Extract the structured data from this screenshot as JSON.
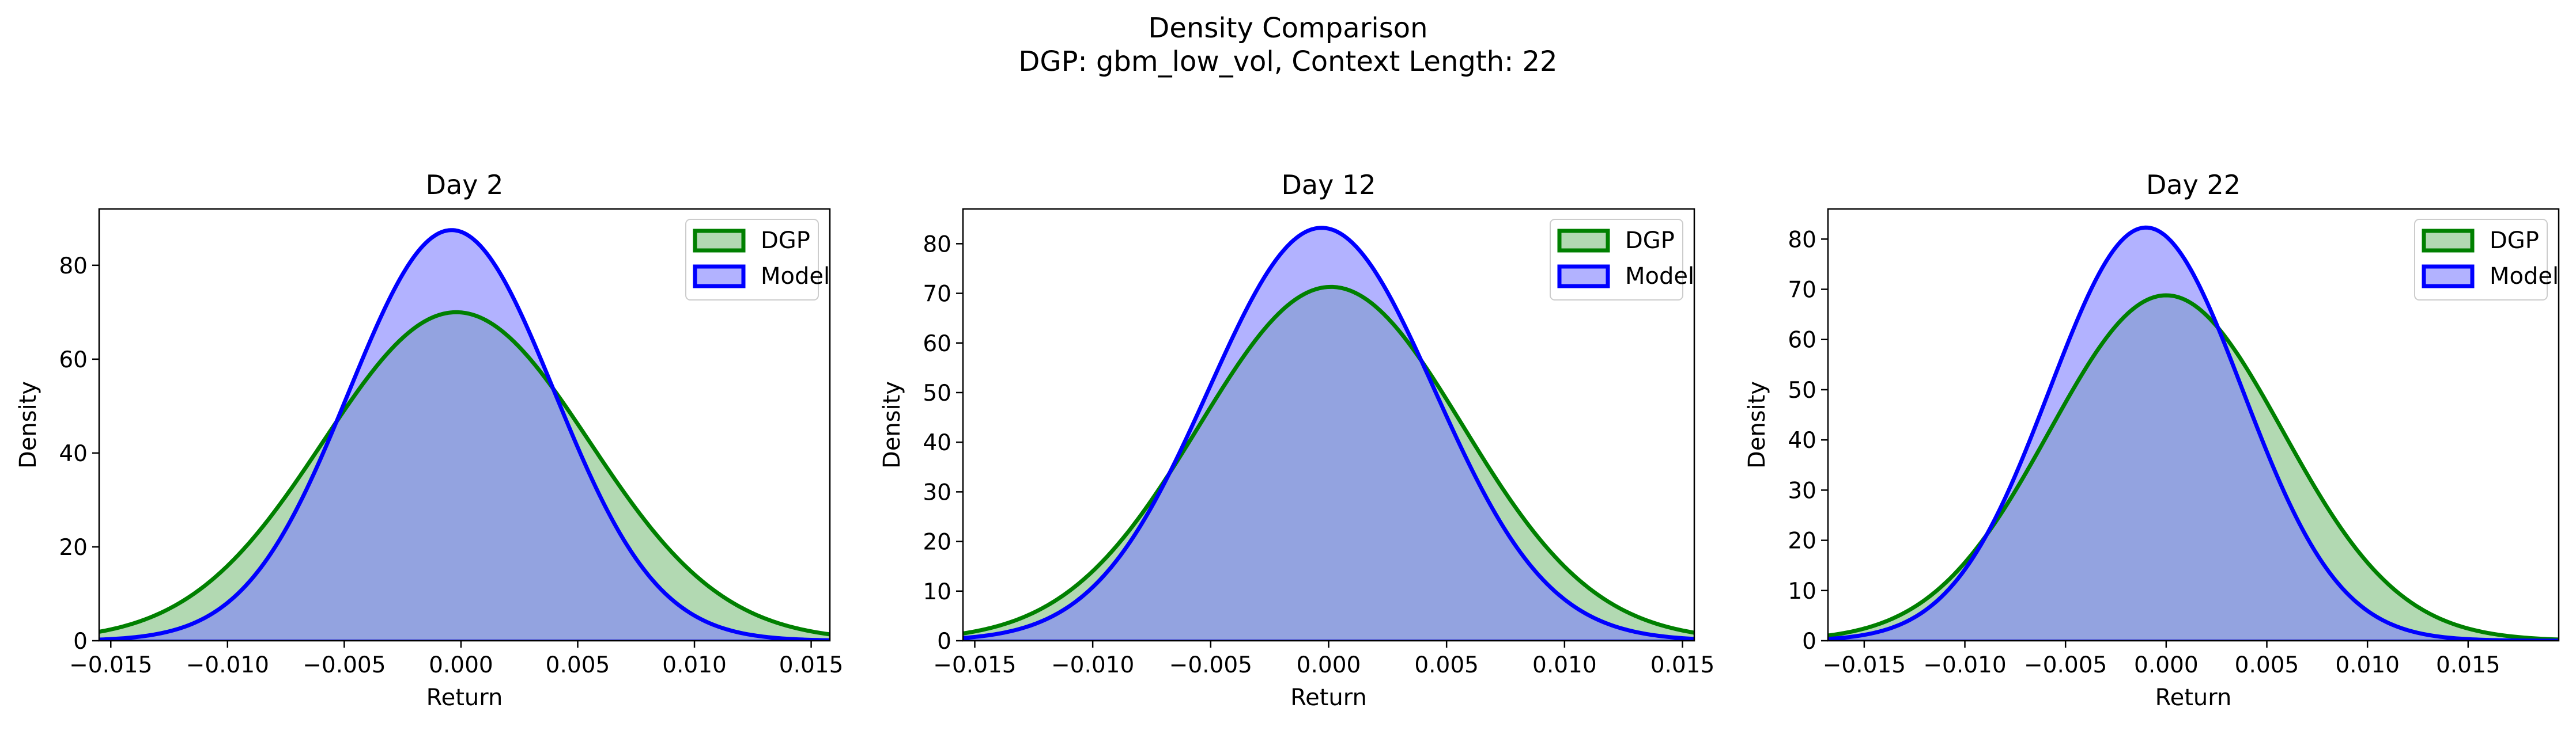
{
  "figure": {
    "title_line1": "Density Comparison",
    "title_line2": "DGP: gbm_low_vol, Context Length: 22"
  },
  "colors": {
    "dgp_line": "#008000",
    "dgp_fill": "#7fbf7f",
    "model_line": "#0000ff",
    "model_fill": "#7f7fff"
  },
  "chart_data": [
    {
      "type": "area",
      "title": "Day 2",
      "xlabel": "Return",
      "ylabel": "Density",
      "xlim": [
        -0.0155,
        0.0158
      ],
      "ylim": [
        0,
        92
      ],
      "xticks": [
        -0.015,
        -0.01,
        -0.005,
        0.0,
        0.005,
        0.01,
        0.015
      ],
      "xtick_labels": [
        "−0.015",
        "−0.010",
        "−0.005",
        "0.000",
        "0.005",
        "0.010",
        "0.015"
      ],
      "yticks": [
        0,
        20,
        40,
        60,
        80
      ],
      "ytick_labels": [
        "0",
        "20",
        "40",
        "60",
        "80"
      ],
      "grid": false,
      "legend": "top-right",
      "series": [
        {
          "name": "DGP",
          "mean": -0.0002,
          "std": 0.0057,
          "peak": 70
        },
        {
          "name": "Model",
          "mean": -0.0004,
          "std": 0.0044,
          "peak": 87.5
        }
      ]
    },
    {
      "type": "area",
      "title": "Day 12",
      "xlabel": "Return",
      "ylabel": "Density",
      "xlim": [
        -0.0155,
        0.0155
      ],
      "ylim": [
        0,
        87
      ],
      "xticks": [
        -0.015,
        -0.01,
        -0.005,
        0.0,
        0.005,
        0.01,
        0.015
      ],
      "xtick_labels": [
        "−0.015",
        "−0.010",
        "−0.005",
        "0.000",
        "0.005",
        "0.010",
        "0.015"
      ],
      "yticks": [
        0,
        10,
        20,
        30,
        40,
        50,
        60,
        70,
        80
      ],
      "ytick_labels": [
        "0",
        "10",
        "20",
        "30",
        "40",
        "50",
        "60",
        "70",
        "80"
      ],
      "grid": false,
      "legend": "top-right",
      "series": [
        {
          "name": "DGP",
          "mean": 0.0001,
          "std": 0.0056,
          "peak": 71.3
        },
        {
          "name": "Model",
          "mean": -0.0003,
          "std": 0.0048,
          "peak": 83.2
        }
      ]
    },
    {
      "type": "area",
      "title": "Day 22",
      "xlabel": "Return",
      "ylabel": "Density",
      "xlim": [
        -0.0168,
        0.0195
      ],
      "ylim": [
        0,
        86
      ],
      "xticks": [
        -0.015,
        -0.01,
        -0.005,
        0.0,
        0.005,
        0.01,
        0.015
      ],
      "xtick_labels": [
        "−0.015",
        "−0.010",
        "−0.005",
        "0.000",
        "0.005",
        "0.010",
        "0.015"
      ],
      "yticks": [
        0,
        10,
        20,
        30,
        40,
        50,
        60,
        70,
        80
      ],
      "ytick_labels": [
        "0",
        "10",
        "20",
        "30",
        "40",
        "50",
        "60",
        "70",
        "80"
      ],
      "grid": false,
      "legend": "top-right",
      "series": [
        {
          "name": "DGP",
          "mean": 0.0,
          "std": 0.0058,
          "peak": 68.8
        },
        {
          "name": "Model",
          "mean": -0.001,
          "std": 0.0048,
          "peak": 82.3
        }
      ]
    }
  ]
}
